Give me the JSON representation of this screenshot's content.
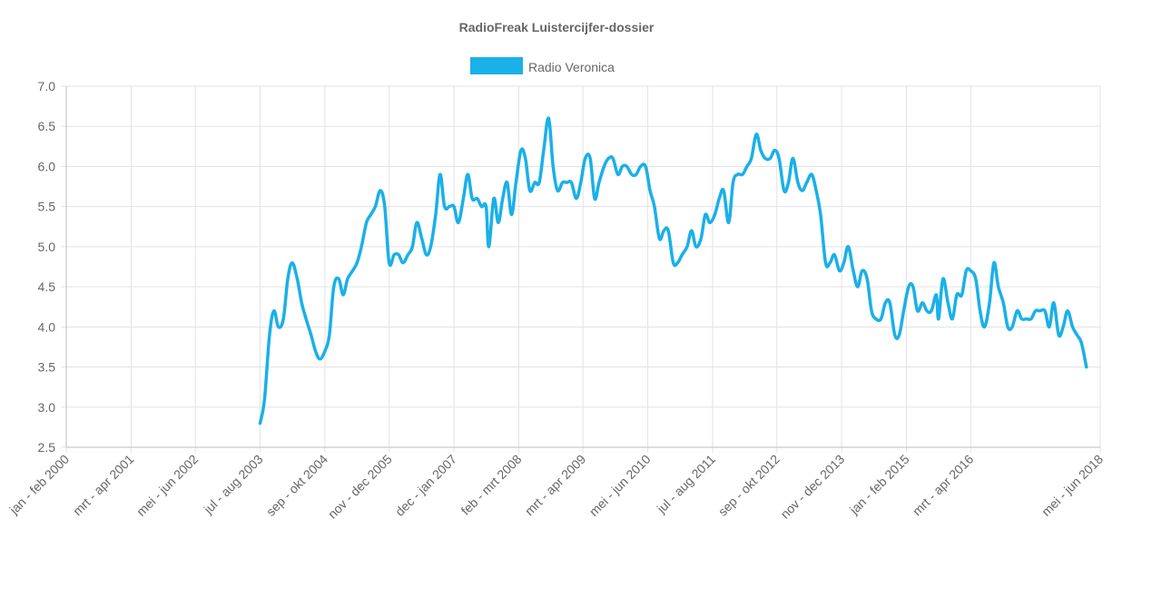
{
  "chart_data": {
    "type": "line",
    "title": "RadioFreak Luistercijfer-dossier",
    "xlabel": "",
    "ylabel": "",
    "ylim": [
      2.5,
      7.0
    ],
    "yticks": [
      "2.5",
      "3.0",
      "3.5",
      "4.0",
      "4.5",
      "5.0",
      "5.5",
      "6.0",
      "6.5",
      "7.0"
    ],
    "xlim": [
      "jan - feb 2000",
      "mei - jun 2018"
    ],
    "xticks": [
      {
        "label": "jan - feb 2000",
        "t": 2000.0
      },
      {
        "label": "mrt - apr 2001",
        "t": 2001.17
      },
      {
        "label": "mei - jun 2002",
        "t": 2002.33
      },
      {
        "label": "jul - aug 2003",
        "t": 2003.5
      },
      {
        "label": "sep - okt 2004",
        "t": 2004.67
      },
      {
        "label": "nov - dec 2005",
        "t": 2005.83
      },
      {
        "label": "dec - jan 2007",
        "t": 2007.0
      },
      {
        "label": "feb - mrt 2008",
        "t": 2008.17
      },
      {
        "label": "mrt - apr 2009",
        "t": 2009.33
      },
      {
        "label": "mei - jun 2010",
        "t": 2010.5
      },
      {
        "label": "jul - aug 2011",
        "t": 2011.67
      },
      {
        "label": "sep - okt 2012",
        "t": 2012.83
      },
      {
        "label": "nov - dec 2013",
        "t": 2014.0
      },
      {
        "label": "jan - feb 2015",
        "t": 2015.17
      },
      {
        "label": "mrt - apr 2016",
        "t": 2016.33
      },
      {
        "label": "mei - jun 2018",
        "t": 2018.67
      }
    ],
    "grid": true,
    "legend": "top-center",
    "series": [
      {
        "name": "Radio Veronica",
        "color": "#1ab0e8",
        "points": [
          [
            2003.5,
            2.8
          ],
          [
            2003.58,
            3.1
          ],
          [
            2003.67,
            3.9
          ],
          [
            2003.75,
            4.2
          ],
          [
            2003.83,
            4.0
          ],
          [
            2003.92,
            4.1
          ],
          [
            2004.0,
            4.6
          ],
          [
            2004.08,
            4.8
          ],
          [
            2004.17,
            4.6
          ],
          [
            2004.25,
            4.3
          ],
          [
            2004.33,
            4.1
          ],
          [
            2004.42,
            3.9
          ],
          [
            2004.5,
            3.7
          ],
          [
            2004.58,
            3.6
          ],
          [
            2004.67,
            3.7
          ],
          [
            2004.75,
            3.9
          ],
          [
            2004.83,
            4.5
          ],
          [
            2004.92,
            4.6
          ],
          [
            2005.0,
            4.4
          ],
          [
            2005.08,
            4.6
          ],
          [
            2005.17,
            4.7
          ],
          [
            2005.25,
            4.8
          ],
          [
            2005.33,
            5.0
          ],
          [
            2005.42,
            5.3
          ],
          [
            2005.5,
            5.4
          ],
          [
            2005.58,
            5.5
          ],
          [
            2005.67,
            5.7
          ],
          [
            2005.75,
            5.5
          ],
          [
            2005.83,
            4.8
          ],
          [
            2005.92,
            4.9
          ],
          [
            2006.0,
            4.9
          ],
          [
            2006.08,
            4.8
          ],
          [
            2006.17,
            4.9
          ],
          [
            2006.25,
            5.0
          ],
          [
            2006.33,
            5.3
          ],
          [
            2006.42,
            5.1
          ],
          [
            2006.5,
            4.9
          ],
          [
            2006.58,
            5.0
          ],
          [
            2006.67,
            5.4
          ],
          [
            2006.75,
            5.9
          ],
          [
            2006.83,
            5.5
          ],
          [
            2006.92,
            5.5
          ],
          [
            2007.0,
            5.5
          ],
          [
            2007.08,
            5.3
          ],
          [
            2007.17,
            5.6
          ],
          [
            2007.25,
            5.9
          ],
          [
            2007.33,
            5.6
          ],
          [
            2007.42,
            5.6
          ],
          [
            2007.5,
            5.5
          ],
          [
            2007.58,
            5.5
          ],
          [
            2007.63,
            5.0
          ],
          [
            2007.72,
            5.6
          ],
          [
            2007.8,
            5.3
          ],
          [
            2007.88,
            5.6
          ],
          [
            2007.96,
            5.8
          ],
          [
            2008.04,
            5.4
          ],
          [
            2008.12,
            5.8
          ],
          [
            2008.21,
            6.2
          ],
          [
            2008.29,
            6.1
          ],
          [
            2008.37,
            5.7
          ],
          [
            2008.46,
            5.8
          ],
          [
            2008.54,
            5.8
          ],
          [
            2008.62,
            6.2
          ],
          [
            2008.71,
            6.6
          ],
          [
            2008.79,
            6.0
          ],
          [
            2008.87,
            5.7
          ],
          [
            2008.96,
            5.8
          ],
          [
            2009.04,
            5.8
          ],
          [
            2009.12,
            5.8
          ],
          [
            2009.21,
            5.6
          ],
          [
            2009.29,
            5.8
          ],
          [
            2009.37,
            6.1
          ],
          [
            2009.46,
            6.1
          ],
          [
            2009.54,
            5.6
          ],
          [
            2009.62,
            5.8
          ],
          [
            2009.71,
            6.0
          ],
          [
            2009.79,
            6.1
          ],
          [
            2009.87,
            6.1
          ],
          [
            2009.96,
            5.9
          ],
          [
            2010.04,
            6.0
          ],
          [
            2010.12,
            6.0
          ],
          [
            2010.21,
            5.9
          ],
          [
            2010.29,
            5.9
          ],
          [
            2010.37,
            6.0
          ],
          [
            2010.46,
            6.0
          ],
          [
            2010.54,
            5.7
          ],
          [
            2010.62,
            5.5
          ],
          [
            2010.71,
            5.1
          ],
          [
            2010.79,
            5.2
          ],
          [
            2010.87,
            5.2
          ],
          [
            2010.96,
            4.8
          ],
          [
            2011.04,
            4.8
          ],
          [
            2011.12,
            4.9
          ],
          [
            2011.21,
            5.0
          ],
          [
            2011.29,
            5.2
          ],
          [
            2011.37,
            5.0
          ],
          [
            2011.46,
            5.1
          ],
          [
            2011.54,
            5.4
          ],
          [
            2011.62,
            5.3
          ],
          [
            2011.71,
            5.4
          ],
          [
            2011.79,
            5.6
          ],
          [
            2011.87,
            5.7
          ],
          [
            2011.96,
            5.3
          ],
          [
            2012.04,
            5.8
          ],
          [
            2012.12,
            5.9
          ],
          [
            2012.21,
            5.9
          ],
          [
            2012.29,
            6.0
          ],
          [
            2012.37,
            6.1
          ],
          [
            2012.46,
            6.4
          ],
          [
            2012.54,
            6.2
          ],
          [
            2012.62,
            6.1
          ],
          [
            2012.71,
            6.1
          ],
          [
            2012.79,
            6.2
          ],
          [
            2012.87,
            6.1
          ],
          [
            2012.96,
            5.7
          ],
          [
            2013.04,
            5.8
          ],
          [
            2013.12,
            6.1
          ],
          [
            2013.21,
            5.8
          ],
          [
            2013.29,
            5.7
          ],
          [
            2013.37,
            5.8
          ],
          [
            2013.46,
            5.9
          ],
          [
            2013.54,
            5.7
          ],
          [
            2013.62,
            5.4
          ],
          [
            2013.71,
            4.8
          ],
          [
            2013.79,
            4.8
          ],
          [
            2013.87,
            4.9
          ],
          [
            2013.96,
            4.7
          ],
          [
            2014.04,
            4.8
          ],
          [
            2014.12,
            5.0
          ],
          [
            2014.21,
            4.7
          ],
          [
            2014.29,
            4.5
          ],
          [
            2014.37,
            4.7
          ],
          [
            2014.46,
            4.6
          ],
          [
            2014.54,
            4.2
          ],
          [
            2014.62,
            4.1
          ],
          [
            2014.71,
            4.1
          ],
          [
            2014.79,
            4.3
          ],
          [
            2014.87,
            4.3
          ],
          [
            2014.96,
            3.9
          ],
          [
            2015.04,
            3.9
          ],
          [
            2015.12,
            4.2
          ],
          [
            2015.21,
            4.5
          ],
          [
            2015.29,
            4.5
          ],
          [
            2015.37,
            4.2
          ],
          [
            2015.46,
            4.3
          ],
          [
            2015.54,
            4.2
          ],
          [
            2015.62,
            4.2
          ],
          [
            2015.71,
            4.4
          ],
          [
            2015.75,
            4.1
          ],
          [
            2015.83,
            4.6
          ],
          [
            2015.92,
            4.3
          ],
          [
            2016.0,
            4.1
          ],
          [
            2016.08,
            4.4
          ],
          [
            2016.17,
            4.4
          ],
          [
            2016.25,
            4.7
          ],
          [
            2016.33,
            4.7
          ],
          [
            2016.42,
            4.6
          ],
          [
            2016.5,
            4.2
          ],
          [
            2016.58,
            4.0
          ],
          [
            2016.67,
            4.3
          ],
          [
            2016.75,
            4.8
          ],
          [
            2016.83,
            4.5
          ],
          [
            2016.92,
            4.3
          ],
          [
            2017.0,
            4.0
          ],
          [
            2017.08,
            4.0
          ],
          [
            2017.17,
            4.2
          ],
          [
            2017.25,
            4.1
          ],
          [
            2017.33,
            4.1
          ],
          [
            2017.42,
            4.1
          ],
          [
            2017.5,
            4.2
          ],
          [
            2017.58,
            4.2
          ],
          [
            2017.67,
            4.2
          ],
          [
            2017.75,
            4.0
          ],
          [
            2017.83,
            4.3
          ],
          [
            2017.92,
            3.9
          ],
          [
            2018.0,
            4.0
          ],
          [
            2018.08,
            4.2
          ],
          [
            2018.17,
            4.0
          ],
          [
            2018.25,
            3.9
          ],
          [
            2018.33,
            3.8
          ],
          [
            2018.42,
            3.5
          ]
        ]
      }
    ]
  }
}
